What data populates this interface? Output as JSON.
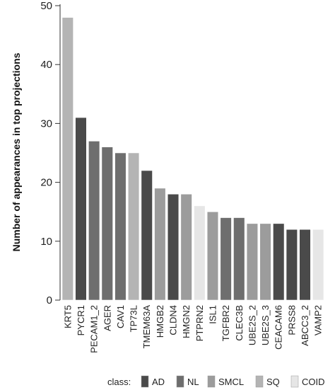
{
  "chart_data": {
    "type": "bar",
    "title": "",
    "xlabel": "",
    "ylabel": "Number of appearances in top projections",
    "ylim": [
      0,
      50
    ],
    "yticks": [
      0,
      10,
      20,
      30,
      40,
      50
    ],
    "grid": false,
    "legend": {
      "placement": "bottom",
      "title": "class:",
      "entries": [
        {
          "name": "AD",
          "color": "#4a4a4a"
        },
        {
          "name": "NL",
          "color": "#6e6e6e"
        },
        {
          "name": "SMCL",
          "color": "#9c9c9c"
        },
        {
          "name": "SQ",
          "color": "#b4b4b4"
        },
        {
          "name": "COID",
          "color": "#e6e6e6"
        }
      ]
    },
    "categories": [
      "KRT5",
      "PYCR1",
      "PECAM1_2",
      "AGER",
      "CAV1",
      "TP73L",
      "TMEM63A",
      "HMGB2",
      "CLDN4",
      "HMGN2",
      "PTPRN2",
      "ISL1",
      "TGFBR2",
      "CLEC3B",
      "UBE2S_2",
      "UBE2S_3",
      "CEACAM6",
      "PRSS8",
      "ABCC3_2",
      "VAMP2"
    ],
    "values": [
      48,
      31,
      27,
      26,
      25,
      25,
      22,
      19,
      18,
      18,
      16,
      15,
      14,
      14,
      13,
      13,
      13,
      12,
      12,
      12
    ],
    "classes": [
      "SQ",
      "AD",
      "NL",
      "NL",
      "NL",
      "SQ",
      "AD",
      "SMCL",
      "AD",
      "SMCL",
      "COID",
      "SMCL",
      "NL",
      "NL",
      "SMCL",
      "SMCL",
      "AD",
      "AD",
      "AD",
      "COID"
    ]
  }
}
